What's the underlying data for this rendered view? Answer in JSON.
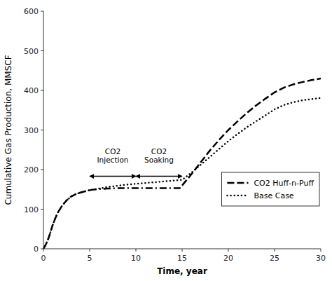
{
  "chart_data": {
    "type": "line",
    "title": "",
    "xlabel": "Time, year",
    "ylabel": "Cumulative Gas Production, MMSCF",
    "xlim": [
      0,
      30
    ],
    "ylim": [
      0,
      600
    ],
    "xticks": [
      0,
      5,
      10,
      15,
      20,
      25,
      30
    ],
    "yticks": [
      0,
      100,
      200,
      300,
      400,
      500,
      600
    ],
    "grid": false,
    "legend": "lower right",
    "series": [
      {
        "name": "Base Case",
        "color": "#000000",
        "line_style": "dotted",
        "x": [
          0,
          0.2,
          0.4,
          0.6,
          0.8,
          1.0,
          1.3,
          1.6,
          2.0,
          2.5,
          3.0,
          3.5,
          4.0,
          4.5,
          5.0,
          6,
          7,
          8,
          9,
          10,
          11,
          12,
          13,
          14,
          15,
          16,
          17,
          18,
          19,
          20,
          21,
          22,
          23,
          24,
          25,
          26,
          27,
          28,
          29,
          30
        ],
        "values": [
          0,
          8,
          18,
          30,
          45,
          60,
          78,
          93,
          108,
          122,
          132,
          138,
          142,
          145,
          148,
          152,
          156,
          159,
          162,
          164,
          166,
          168,
          170,
          172,
          174,
          192,
          212,
          232,
          252,
          272,
          290,
          307,
          322,
          337,
          352,
          363,
          370,
          375,
          378,
          381
        ]
      },
      {
        "color": "#000000",
        "line_style": "dashed",
        "x": [
          0,
          0.2,
          0.4,
          0.6,
          0.8,
          1.0,
          1.3,
          1.6,
          2.0,
          2.5,
          3.0,
          3.5,
          4.0,
          4.5,
          5.0
        ],
        "values": [
          0,
          8,
          18,
          30,
          45,
          60,
          78,
          93,
          108,
          122,
          132,
          138,
          142,
          145,
          148
        ]
      },
      {
        "color": "#000000",
        "line_style": "dashdot",
        "x": [
          5.0,
          6,
          7,
          8,
          9,
          10,
          11,
          12,
          13,
          14,
          15.0
        ],
        "values": [
          148,
          151,
          152,
          153,
          153,
          153,
          153,
          153,
          153,
          153,
          153
        ]
      },
      {
        "name": "CO2 Huff-n-Puff",
        "color": "#000000",
        "line_style": "dashed",
        "x": [
          15,
          16,
          17,
          18,
          19,
          20,
          21,
          22,
          23,
          24,
          25,
          26,
          27,
          28,
          29,
          30
        ],
        "values": [
          160,
          188,
          218,
          248,
          275,
          300,
          322,
          343,
          362,
          379,
          395,
          407,
          415,
          421,
          426,
          430
        ]
      }
    ],
    "annotations": [
      {
        "text": "CO2\nInjection",
        "x": 7.5,
        "y": 213,
        "arrow": {
          "x": [
            5,
            10
          ],
          "y": 183
        }
      },
      {
        "text": "CO2\nSoaking",
        "x": 12.5,
        "y": 213,
        "arrow": {
          "x": [
            10,
            15
          ],
          "y": 183
        }
      }
    ]
  }
}
